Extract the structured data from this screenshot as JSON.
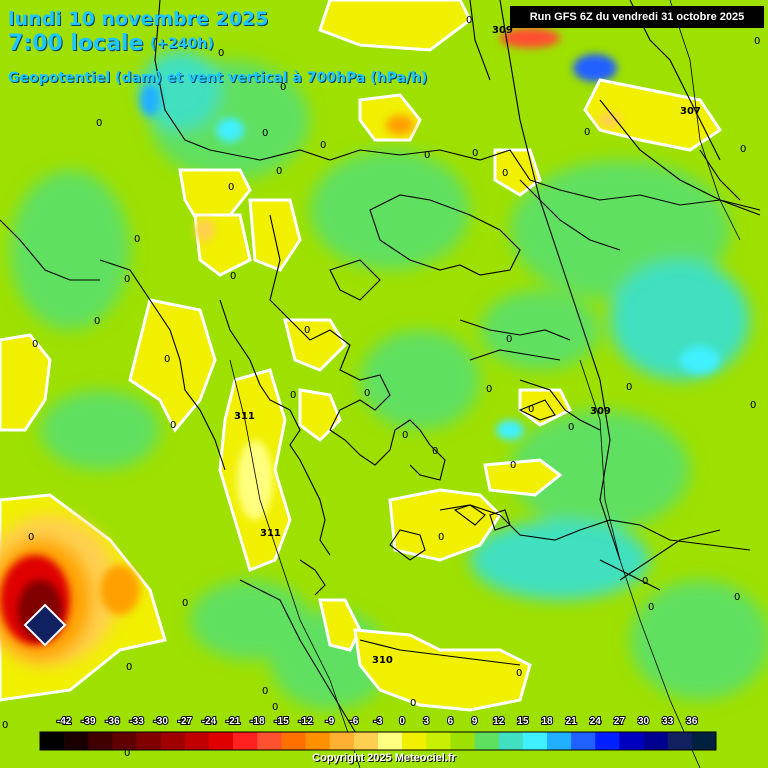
{
  "header": {
    "date_line": "lundi 10 novembre 2025",
    "time_line": "7:00 locale",
    "lead_time": "(+240h)",
    "parameter": "Geopotentiel (dam) et vent vertical à 700hPa (hPa/h)",
    "run_info": "Run GFS 6Z du vendredi 31 octobre 2025"
  },
  "colors": {
    "base_green": "#9ee000",
    "yellow": "#f0f000",
    "light_yellow": "#ffff80",
    "orange": "#ffa000",
    "red": "#e00000",
    "dark_red": "#600000",
    "cyan": "#40e0c0",
    "blue": "#2060ff",
    "land_border": "#000000",
    "contour": "#ffffff"
  },
  "legend": {
    "ticks": [
      "-42",
      "-39",
      "-36",
      "-33",
      "-30",
      "-27",
      "-24",
      "-21",
      "-18",
      "-15",
      "-12",
      "-9",
      "-6",
      "-3",
      "0",
      "3",
      "6",
      "9",
      "12",
      "15",
      "18",
      "21",
      "24",
      "27",
      "30",
      "33",
      "36"
    ],
    "colors": [
      "#000000",
      "#1a0000",
      "#400000",
      "#600000",
      "#800000",
      "#a00000",
      "#c00000",
      "#e00000",
      "#ff2020",
      "#ff5030",
      "#ff7000",
      "#ff9000",
      "#ffb030",
      "#ffd050",
      "#ffff80",
      "#f0f000",
      "#c8f000",
      "#9ee000",
      "#60e060",
      "#40e0c0",
      "#40f0ff",
      "#20b0ff",
      "#2060ff",
      "#0020ff",
      "#0000c0",
      "#000090",
      "#102060",
      "#002040"
    ]
  },
  "map_labels": {
    "zero": "0",
    "geopotential": [
      "309",
      "307",
      "311",
      "311",
      "309",
      "310"
    ]
  },
  "copyright": "Copyright 2025 Meteociel.fr"
}
